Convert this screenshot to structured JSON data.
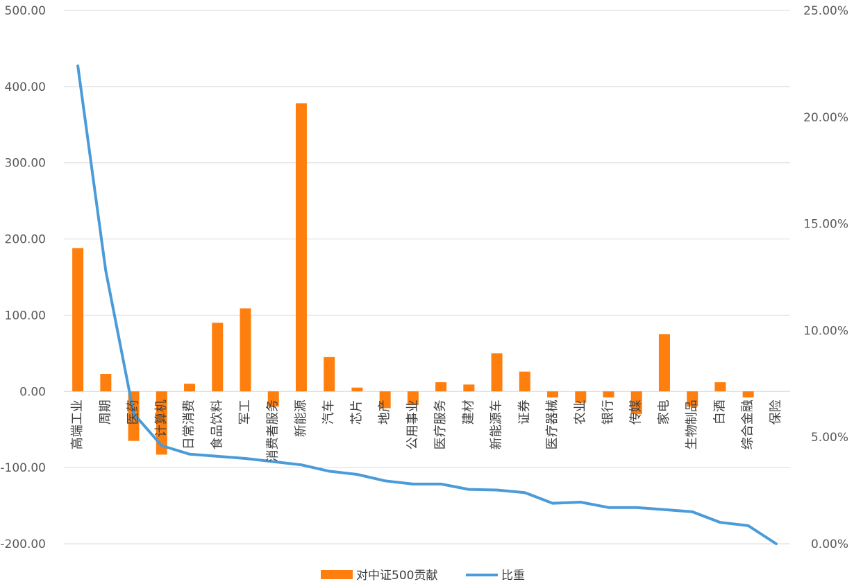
{
  "chart_data": {
    "type": "bar+line",
    "categories": [
      "高端工业",
      "周期",
      "医药",
      "计算机",
      "日常消费",
      "食品饮料",
      "军工",
      "消费者服务",
      "新能源",
      "汽车",
      "芯片",
      "地产",
      "公用事业",
      "医疗服务",
      "建材",
      "新能源车",
      "证券",
      "医疗器械",
      "农业",
      "银行",
      "传媒",
      "家电",
      "生物制品",
      "白酒",
      "综合金融",
      "保险"
    ],
    "series": [
      {
        "name": "对中证500贡献",
        "type": "bar",
        "axis": "left",
        "color": "#ff7f0e",
        "values": [
          188,
          23,
          -65,
          -83,
          10,
          90,
          109,
          -20,
          378,
          45,
          5,
          -22,
          -18,
          12,
          9,
          50,
          26,
          -8,
          -15,
          -8,
          -30,
          75,
          -20,
          12,
          -8,
          0
        ]
      },
      {
        "name": "比重",
        "type": "line",
        "axis": "right",
        "color": "#4a9bd9",
        "values": [
          22.4,
          12.8,
          6.1,
          4.6,
          4.2,
          4.1,
          4.0,
          3.85,
          3.7,
          3.4,
          3.25,
          2.95,
          2.8,
          2.8,
          2.55,
          2.52,
          2.4,
          1.9,
          1.95,
          1.7,
          1.7,
          1.6,
          1.5,
          1.0,
          0.85,
          0.0
        ]
      }
    ],
    "y_left": {
      "min": -200,
      "max": 500,
      "ticks": [
        "500.00",
        "400.00",
        "300.00",
        "200.00",
        "100.00",
        "0.00",
        "-100.00",
        "-200.00"
      ]
    },
    "y_right": {
      "min": 0,
      "max": 25,
      "ticks": [
        "25.00%",
        "20.00%",
        "15.00%",
        "10.00%",
        "5.00%",
        "0.00%"
      ]
    },
    "grid": true,
    "legend": {
      "position": "bottom",
      "items": [
        "对中证500贡献",
        "比重"
      ]
    }
  }
}
